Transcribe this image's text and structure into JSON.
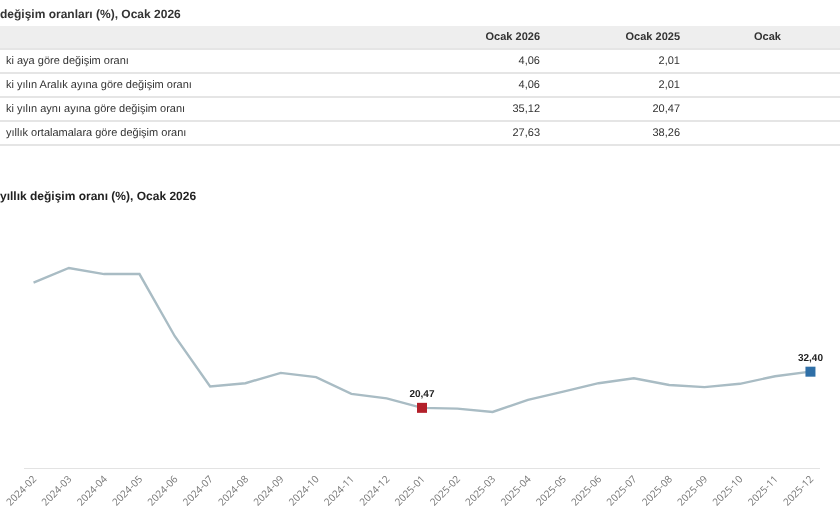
{
  "chart_data": [
    {
      "type": "other",
      "title": "değişim oranları (%), Ocak 2026",
      "categories": [
        "ki aya göre değişim oranı",
        "ki yılın Aralık ayına göre değişim oranı",
        "ki yılın aynı ayına göre değişim oranı",
        "yıllık ortalamalara göre değişim oranı"
      ],
      "series": [
        {
          "name": "Ocak 2026",
          "values": [
            4.06,
            4.06,
            35.12,
            27.63
          ],
          "value_labels": [
            "4,06",
            "4,06",
            "35,12",
            "27,63"
          ]
        },
        {
          "name": "Ocak 2025",
          "values": [
            2.01,
            2.01,
            20.47,
            38.26
          ],
          "value_labels": [
            "2,01",
            "2,01",
            "20,47",
            "38,26"
          ]
        },
        {
          "name": "Ocak",
          "values": [
            null,
            null,
            null,
            null
          ]
        }
      ]
    },
    {
      "type": "line",
      "title": "yıllık değişim oranı (%), Ocak 2026",
      "categories": [
        "2024-02",
        "2024-03",
        "2024-04",
        "2024-05",
        "2024-06",
        "2024-07",
        "2024-08",
        "2024-09",
        "2024-10",
        "2024-11",
        "2024-12",
        "2025-01",
        "2025-02",
        "2025-03",
        "2025-04",
        "2025-05",
        "2025-06",
        "2025-07",
        "2025-08",
        "2025-09",
        "2025-10",
        "2025-11",
        "2025-12"
      ],
      "series": [
        {
          "color": "#a9bcc4",
          "marker": "none",
          "values": [
            61.8,
            66.6,
            64.6,
            64.6,
            44.1,
            27.5,
            28.6,
            32.0,
            30.6,
            25.1,
            23.6,
            20.47,
            20.2,
            19.1,
            23.1,
            25.8,
            28.6,
            30.2,
            28.0,
            27.3,
            28.4,
            30.9,
            32.4
          ]
        },
        {
          "type": "scatter",
          "marker": "square",
          "colors": [
            null,
            null,
            null,
            null,
            null,
            null,
            null,
            null,
            null,
            null,
            null,
            "#b3202a",
            null,
            null,
            null,
            null,
            null,
            null,
            null,
            null,
            null,
            null,
            "#2f6fa7"
          ],
          "values": [
            null,
            null,
            null,
            null,
            null,
            null,
            null,
            null,
            null,
            null,
            null,
            20.47,
            null,
            null,
            null,
            null,
            null,
            null,
            null,
            null,
            null,
            null,
            32.4
          ],
          "value_labels": [
            null,
            null,
            null,
            null,
            null,
            null,
            null,
            null,
            null,
            null,
            null,
            "20,47",
            null,
            null,
            null,
            null,
            null,
            null,
            null,
            null,
            null,
            null,
            "32,40"
          ]
        }
      ],
      "grid": false
    }
  ]
}
